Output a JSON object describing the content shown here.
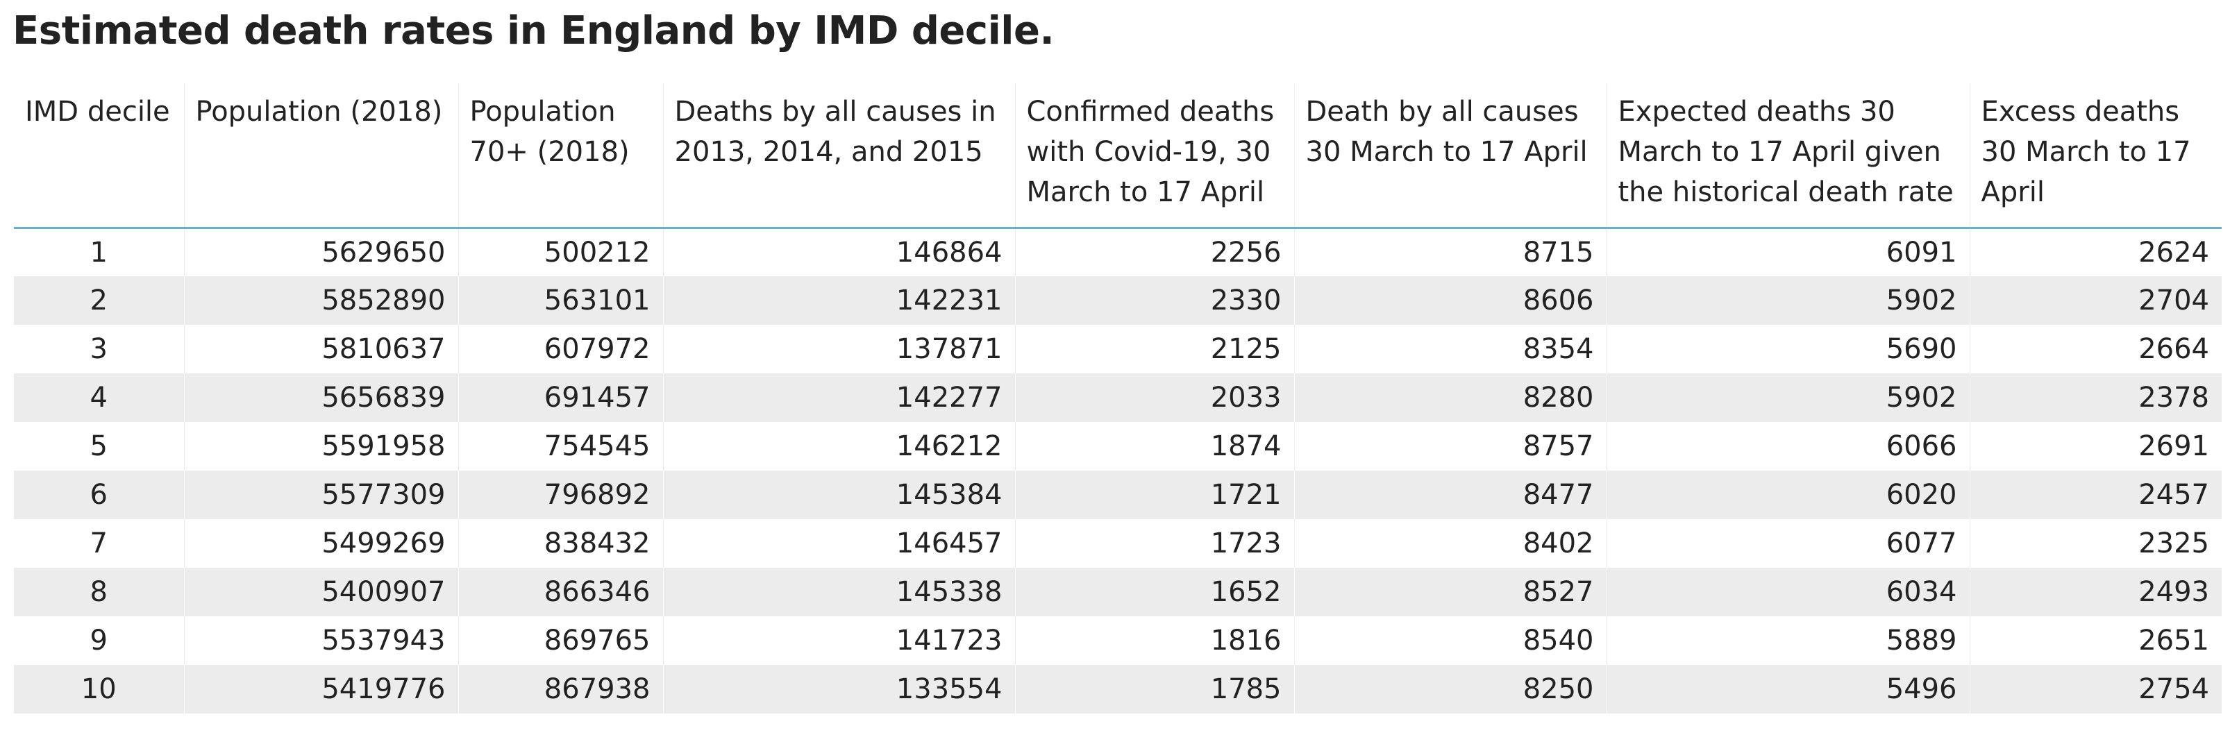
{
  "title": "Estimated death rates in England by IMD decile.",
  "chart_data": {
    "type": "table",
    "title": "Estimated death rates in England by IMD decile.",
    "columns": [
      "IMD decile",
      "Population (2018)",
      "Population 70+ (2018)",
      "Deaths by all causes in 2013, 2014, and 2015",
      "Confirmed deaths with Covid-19, 30 March to 17 April",
      "Death by all causes 30 March to 17 April",
      "Expected deaths 30 March to 17 April given the historical death rate",
      "Excess deaths 30 March to 17 April"
    ],
    "rows": [
      [
        "1",
        "5629650",
        "500212",
        "146864",
        "2256",
        "8715",
        "6091",
        "2624"
      ],
      [
        "2",
        "5852890",
        "563101",
        "142231",
        "2330",
        "8606",
        "5902",
        "2704"
      ],
      [
        "3",
        "5810637",
        "607972",
        "137871",
        "2125",
        "8354",
        "5690",
        "2664"
      ],
      [
        "4",
        "5656839",
        "691457",
        "142277",
        "2033",
        "8280",
        "5902",
        "2378"
      ],
      [
        "5",
        "5591958",
        "754545",
        "146212",
        "1874",
        "8757",
        "6066",
        "2691"
      ],
      [
        "6",
        "5577309",
        "796892",
        "145384",
        "1721",
        "8477",
        "6020",
        "2457"
      ],
      [
        "7",
        "5499269",
        "838432",
        "146457",
        "1723",
        "8402",
        "6077",
        "2325"
      ],
      [
        "8",
        "5400907",
        "866346",
        "145338",
        "1652",
        "8527",
        "6034",
        "2493"
      ],
      [
        "9",
        "5537943",
        "869765",
        "141723",
        "1816",
        "8540",
        "5889",
        "2651"
      ],
      [
        "10",
        "5419776",
        "867938",
        "133554",
        "1785",
        "8250",
        "5496",
        "2754"
      ]
    ]
  },
  "colors": {
    "header_rule": "#6aaed6",
    "band": "#ececec",
    "text": "#222222"
  }
}
